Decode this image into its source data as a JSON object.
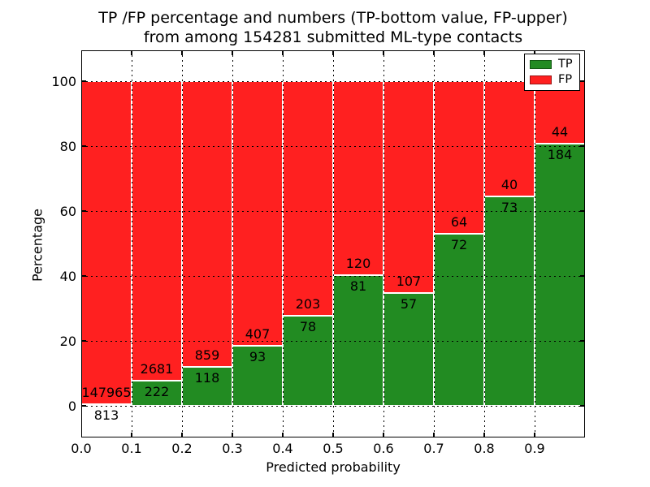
{
  "title": {
    "line1": "TP /FP percentage and numbers (TP-bottom value, FP-upper)",
    "line2": "from among 154281 submitted ML-type contacts"
  },
  "axes": {
    "xlabel": "Predicted probability",
    "ylabel": "Percentage"
  },
  "legend": {
    "position": "upper right",
    "entries": [
      {
        "label": "TP",
        "color": "#228B22",
        "edge_color": "#135913"
      },
      {
        "label": "FP",
        "color": "#FF2020",
        "edge_color": "#991313"
      }
    ]
  },
  "chart_data": {
    "type": "bar",
    "stacked": true,
    "normalized_to_percent": true,
    "title": "TP /FP percentage and numbers (TP-bottom value, FP-upper) from among 154281 submitted ML-type contacts",
    "xlabel": "Predicted probability",
    "ylabel": "Percentage",
    "total_submitted_contacts": 154281,
    "x_tick_labels": [
      "0.0",
      "0.1",
      "0.2",
      "0.3",
      "0.4",
      "0.5",
      "0.6",
      "0.7",
      "0.8",
      "0.9"
    ],
    "y_tick_labels": [
      "0",
      "20",
      "40",
      "60",
      "80",
      "100"
    ],
    "y_ticks": [
      0,
      20,
      40,
      60,
      80,
      100
    ],
    "xlim": [
      0.0,
      1.0
    ],
    "ylim": [
      -10,
      110
    ],
    "bin_width": 0.1,
    "grid": "dotted",
    "bar_edge_color": "#ffffff",
    "categories": [
      "0.0-0.1",
      "0.1-0.2",
      "0.2-0.3",
      "0.3-0.4",
      "0.4-0.5",
      "0.5-0.6",
      "0.6-0.7",
      "0.7-0.8",
      "0.8-0.9",
      "0.9-1.0"
    ],
    "series": [
      {
        "name": "TP",
        "color": "#228B22",
        "counts": [
          813,
          222,
          118,
          93,
          78,
          81,
          57,
          72,
          73,
          184
        ]
      },
      {
        "name": "FP",
        "color": "#FF2020",
        "counts": [
          147965,
          2681,
          859,
          407,
          203,
          120,
          107,
          64,
          40,
          44
        ]
      }
    ],
    "tp_percent": [
      0.55,
      7.65,
      12.08,
      18.6,
      27.76,
      40.3,
      34.76,
      52.94,
      64.6,
      80.7
    ]
  }
}
